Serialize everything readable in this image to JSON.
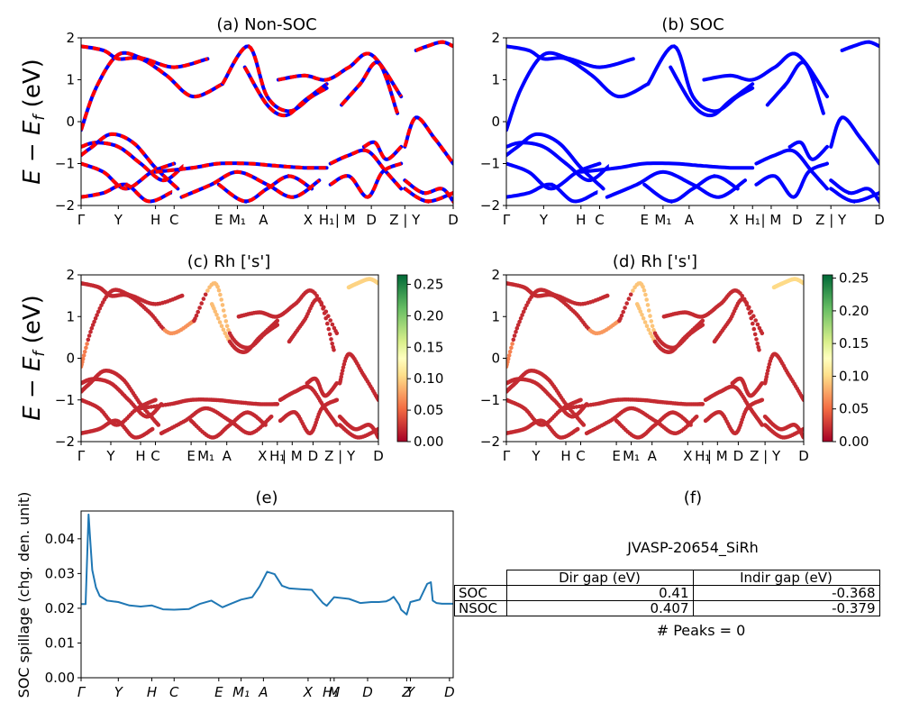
{
  "chart_data": [
    {
      "id": "a",
      "type": "line",
      "title": "(a) Non-SOC",
      "ylabel": "E − E_f (eV)",
      "ylim": [
        -2,
        2
      ],
      "xlim": [
        0,
        1
      ],
      "ytick_labels": [
        "−2",
        "−1",
        "0",
        "1",
        "2"
      ],
      "kpoint_labels": [
        "Γ",
        "Y",
        "H",
        "C",
        "E",
        "M₁",
        "A",
        "X",
        "H₁",
        "| M",
        "D",
        "Z | Y",
        "D"
      ],
      "kpoint_positions": [
        0,
        0.1,
        0.2,
        0.25,
        0.37,
        0.42,
        0.49,
        0.61,
        0.66,
        0.71,
        0.78,
        0.87,
        1.0
      ],
      "series": [
        {
          "color": "#0000ff",
          "style": "solid"
        },
        {
          "color": "#ff0000",
          "style": "dashed"
        }
      ],
      "bands": [
        {
          "x": [
            0,
            0.04,
            0.1,
            0.17,
            0.25,
            0.34
          ],
          "y": [
            -0.2,
            0.8,
            1.6,
            1.5,
            1.3,
            1.5
          ]
        },
        {
          "x": [
            0,
            0.06,
            0.1,
            0.16,
            0.23,
            0.3,
            0.38
          ],
          "y": [
            1.8,
            1.7,
            1.5,
            1.5,
            1.1,
            0.6,
            0.9
          ]
        },
        {
          "x": [
            0.38,
            0.45,
            0.5,
            0.56,
            0.62,
            0.66
          ],
          "y": [
            0.9,
            1.8,
            0.6,
            0.25,
            0.6,
            0.8
          ]
        },
        {
          "x": [
            0.44,
            0.5,
            0.55,
            0.6,
            0.66
          ],
          "y": [
            1.3,
            0.4,
            0.15,
            0.5,
            0.9
          ]
        },
        {
          "x": [
            0.53,
            0.6,
            0.66,
            0.72,
            0.78,
            0.86
          ],
          "y": [
            1.0,
            1.1,
            1.0,
            1.3,
            1.6,
            0.6
          ]
        },
        {
          "x": [
            0.7,
            0.75,
            0.8,
            0.85
          ],
          "y": [
            0.4,
            0.9,
            1.4,
            0.2
          ]
        },
        {
          "x": [
            0.9,
            0.93,
            0.97,
            1.0
          ],
          "y": [
            1.7,
            1.8,
            1.9,
            1.8
          ]
        },
        {
          "x": [
            0,
            0.04,
            0.1,
            0.16,
            0.22,
            0.27
          ],
          "y": [
            -0.6,
            -0.5,
            -0.6,
            -1.0,
            -1.4,
            -1.1
          ]
        },
        {
          "x": [
            0,
            0.03,
            0.08,
            0.14,
            0.2,
            0.26
          ],
          "y": [
            -0.8,
            -0.6,
            -0.3,
            -0.5,
            -1.1,
            -1.6
          ]
        },
        {
          "x": [
            0,
            0.06,
            0.12,
            0.19,
            0.25
          ],
          "y": [
            -1.0,
            -1.2,
            -1.6,
            -1.2,
            -1.0
          ]
        },
        {
          "x": [
            0.2,
            0.3,
            0.37,
            0.45,
            0.52,
            0.6,
            0.66
          ],
          "y": [
            -1.2,
            -1.1,
            -1.0,
            -1.0,
            -1.05,
            -1.1,
            -1.1
          ]
        },
        {
          "x": [
            0.27,
            0.35,
            0.42,
            0.5,
            0.57,
            0.64
          ],
          "y": [
            -1.8,
            -1.5,
            -1.2,
            -1.5,
            -1.8,
            -1.4
          ]
        },
        {
          "x": [
            0.37,
            0.44,
            0.5,
            0.56,
            0.62
          ],
          "y": [
            -1.5,
            -1.9,
            -1.6,
            -1.3,
            -1.6
          ]
        },
        {
          "x": [
            0,
            0.06,
            0.12,
            0.18,
            0.24
          ],
          "y": [
            -1.8,
            -1.7,
            -1.5,
            -1.9,
            -1.7
          ]
        },
        {
          "x": [
            0.67,
            0.72,
            0.77,
            0.82,
            0.86
          ],
          "y": [
            -1.0,
            -0.8,
            -0.7,
            -1.2,
            -1.6
          ]
        },
        {
          "x": [
            0.67,
            0.72,
            0.77,
            0.81,
            0.86
          ],
          "y": [
            -1.5,
            -1.3,
            -1.8,
            -1.2,
            -1.0
          ]
        },
        {
          "x": [
            0.76,
            0.79,
            0.82,
            0.86
          ],
          "y": [
            -0.6,
            -0.5,
            -0.9,
            -0.6
          ]
        },
        {
          "x": [
            0.87,
            0.9,
            0.95,
            1.0
          ],
          "y": [
            -0.6,
            0.1,
            -0.4,
            -1.0
          ]
        },
        {
          "x": [
            0.87,
            0.92,
            0.97,
            1.0
          ],
          "y": [
            -1.4,
            -1.7,
            -1.6,
            -1.9
          ]
        },
        {
          "x": [
            0.87,
            0.93,
            1.0
          ],
          "y": [
            -1.6,
            -1.9,
            -1.7
          ]
        }
      ]
    },
    {
      "id": "b",
      "type": "line",
      "title": "(b) SOC",
      "ylim": [
        -2,
        2
      ],
      "xlim": [
        0,
        1
      ],
      "ytick_labels": [
        "−2",
        "−1",
        "0",
        "1",
        "2"
      ],
      "kpoint_labels": [
        "Γ",
        "Y",
        "H",
        "C",
        "E",
        "M₁",
        "A",
        "X",
        "H₁",
        "| M",
        "D",
        "Z | Y",
        "D"
      ],
      "kpoint_positions": [
        0,
        0.1,
        0.2,
        0.25,
        0.37,
        0.42,
        0.49,
        0.61,
        0.66,
        0.71,
        0.78,
        0.87,
        1.0
      ],
      "series": [
        {
          "color": "#0000ff",
          "style": "solid"
        }
      ],
      "bands_ref": "a"
    },
    {
      "id": "c",
      "type": "scatter",
      "title": "(c)  Rh ['s']",
      "ylabel": "E − E_f (eV)",
      "ylim": [
        -2,
        2
      ],
      "xlim": [
        0,
        1
      ],
      "ytick_labels": [
        "−2",
        "−1",
        "0",
        "1",
        "2"
      ],
      "kpoint_labels": [
        "Γ",
        "Y",
        "H",
        "C",
        "E",
        "M₁",
        "A",
        "X",
        "H₁",
        "| M",
        "D",
        "Z | Y",
        "D"
      ],
      "kpoint_positions": [
        0,
        0.1,
        0.2,
        0.25,
        0.37,
        0.42,
        0.49,
        0.61,
        0.66,
        0.71,
        0.78,
        0.87,
        1.0
      ],
      "colorbar": {
        "min": 0.0,
        "max": 0.265,
        "ticks": [
          "0.00",
          "0.05",
          "0.10",
          "0.15",
          "0.20",
          "0.25"
        ],
        "tick_values": [
          0,
          0.05,
          0.1,
          0.15,
          0.2,
          0.25
        ],
        "colormap": "RdYlGn"
      },
      "bands_ref": "a",
      "highlight_weight": 0.09,
      "base_weight": 0.02
    },
    {
      "id": "d",
      "type": "scatter",
      "title": "(d) Rh ['s']",
      "ylim": [
        -2,
        2
      ],
      "xlim": [
        0,
        1
      ],
      "ytick_labels": [
        "−2",
        "−1",
        "0",
        "1",
        "2"
      ],
      "kpoint_labels": [
        "Γ",
        "Y",
        "H",
        "C",
        "E",
        "M₁",
        "A",
        "X",
        "H₁",
        "| M",
        "D",
        "Z | Y",
        "D"
      ],
      "kpoint_positions": [
        0,
        0.1,
        0.2,
        0.25,
        0.37,
        0.42,
        0.49,
        0.61,
        0.66,
        0.71,
        0.78,
        0.87,
        1.0
      ],
      "colorbar": {
        "min": 0.0,
        "max": 0.255,
        "ticks": [
          "0.00",
          "0.05",
          "0.10",
          "0.15",
          "0.20",
          "0.25"
        ],
        "tick_values": [
          0,
          0.05,
          0.1,
          0.15,
          0.2,
          0.25
        ],
        "colormap": "RdYlGn"
      },
      "bands_ref": "a",
      "highlight_weight": 0.09,
      "base_weight": 0.02
    },
    {
      "id": "e",
      "type": "line",
      "title": "(e)",
      "ylabel": "SOC spillage (chg. den. unit)",
      "ylim": [
        0,
        0.048
      ],
      "xlim": [
        0,
        1
      ],
      "ytick_labels": [
        "0.00",
        "0.01",
        "0.02",
        "0.03",
        "0.04"
      ],
      "ytick_values": [
        0,
        0.01,
        0.02,
        0.03,
        0.04
      ],
      "kpoint_labels": [
        "Γ",
        "Y",
        "H",
        "C",
        "E",
        "M₁",
        "A",
        "X",
        "H₁",
        "M",
        "D",
        "Z",
        "Y",
        "D"
      ],
      "kpoint_positions": [
        0,
        0.1,
        0.19,
        0.25,
        0.37,
        0.43,
        0.49,
        0.61,
        0.67,
        0.68,
        0.77,
        0.875,
        0.885,
        0.99
      ],
      "series": [
        {
          "color": "#1f77b4",
          "x": [
            0,
            0.012,
            0.02,
            0.025,
            0.03,
            0.04,
            0.05,
            0.07,
            0.1,
            0.13,
            0.16,
            0.19,
            0.22,
            0.25,
            0.29,
            0.32,
            0.35,
            0.38,
            0.4,
            0.43,
            0.46,
            0.48,
            0.5,
            0.52,
            0.54,
            0.56,
            0.59,
            0.62,
            0.65,
            0.66,
            0.68,
            0.72,
            0.75,
            0.78,
            0.8,
            0.82,
            0.83,
            0.84,
            0.855,
            0.86,
            0.875,
            0.885,
            0.9,
            0.91,
            0.93,
            0.94,
            0.945,
            0.955,
            0.97,
            1.0
          ],
          "y": [
            0.0212,
            0.0212,
            0.047,
            0.039,
            0.031,
            0.026,
            0.0235,
            0.0222,
            0.0218,
            0.0208,
            0.0205,
            0.0208,
            0.0197,
            0.0196,
            0.0198,
            0.0213,
            0.0222,
            0.0203,
            0.0212,
            0.0225,
            0.0232,
            0.0263,
            0.0305,
            0.0298,
            0.0265,
            0.0257,
            0.0255,
            0.0253,
            0.0215,
            0.0207,
            0.0232,
            0.0227,
            0.0215,
            0.0218,
            0.0218,
            0.022,
            0.0225,
            0.0233,
            0.021,
            0.0196,
            0.0182,
            0.0218,
            0.0222,
            0.0225,
            0.027,
            0.0275,
            0.0222,
            0.0215,
            0.0213,
            0.0213
          ]
        }
      ]
    },
    {
      "id": "f",
      "type": "table",
      "title": "(f)",
      "material": "JVASP-20654_SiRh",
      "columns": [
        "Dir gap (eV)",
        "Indir gap (eV)"
      ],
      "rows": [
        {
          "label": "SOC",
          "values": [
            "0.41",
            "-0.368"
          ]
        },
        {
          "label": "NSOC",
          "values": [
            "0.407",
            "-0.379"
          ]
        }
      ],
      "peaks": "# Peaks = 0"
    }
  ]
}
